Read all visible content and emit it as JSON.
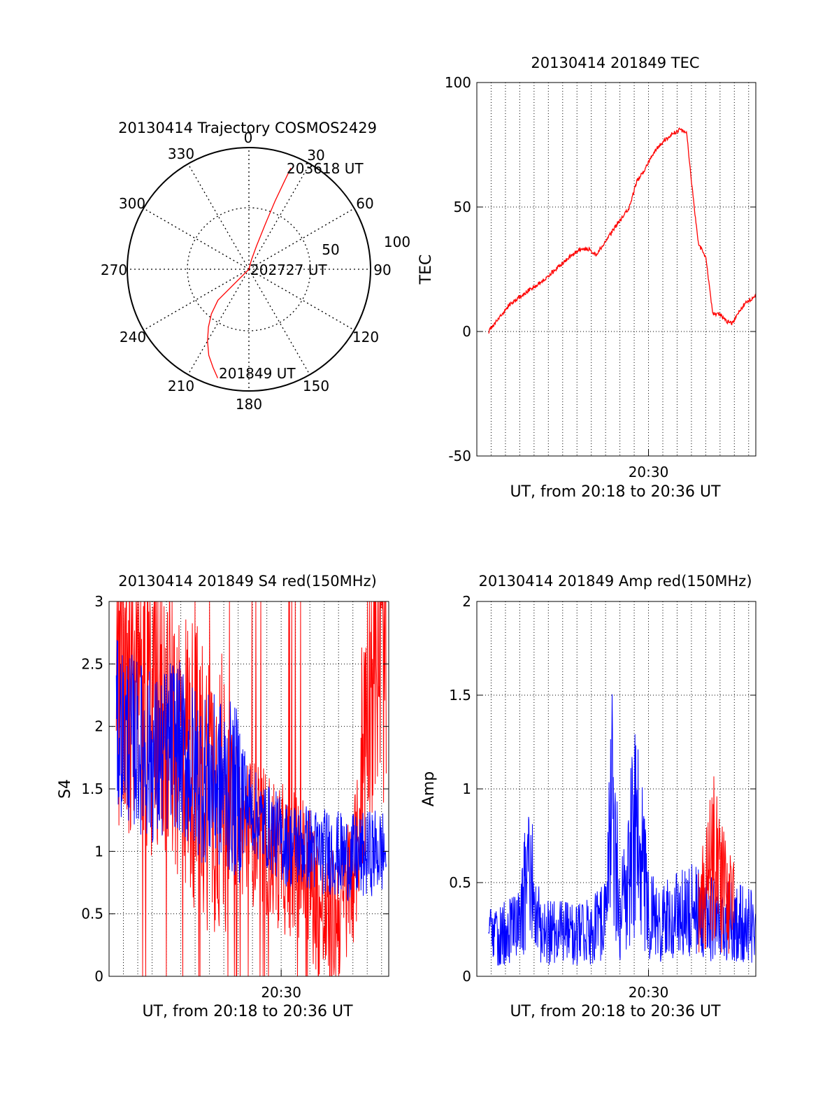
{
  "colors": {
    "red": "#ff0000",
    "blue": "#0000ff",
    "axis": "#000000",
    "grid": "#000000"
  },
  "chart_data": [
    {
      "type": "polar",
      "title": "20130414 Trajectory COSMOS2429",
      "angle_labels": [
        "0",
        "30",
        "60",
        "90",
        "120",
        "150",
        "180",
        "210",
        "240",
        "270",
        "300",
        "330"
      ],
      "ring_labels": [
        "50",
        "100"
      ],
      "rlim": [
        0,
        100
      ],
      "series": [
        {
          "color": "#ff0000",
          "points": [
            [
              196,
              93
            ],
            [
              200,
              86
            ],
            [
              205,
              78
            ],
            [
              210,
              68
            ],
            [
              215,
              58
            ],
            [
              220,
              48
            ],
            [
              225,
              36
            ],
            [
              0,
              0
            ],
            [
              15,
              8
            ],
            [
              18,
              20
            ],
            [
              20,
              40
            ],
            [
              21,
              60
            ],
            [
              22,
              78
            ],
            [
              22.5,
              90
            ]
          ]
        }
      ],
      "annotations": [
        {
          "text": "203618 UT",
          "at": [
            22.5,
            90
          ]
        },
        {
          "text": "202727 UT",
          "at": [
            0,
            0
          ]
        },
        {
          "text": "201849 UT",
          "at": [
            196,
            93
          ]
        }
      ]
    },
    {
      "type": "line",
      "title": "20130414 201849 TEC",
      "ylabel": "TEC",
      "xlabel": "UT, from 20:18 to 20:36 UT",
      "x_tick_labels": [
        {
          "t": "20:30",
          "label": "20:30"
        }
      ],
      "xlim": [
        "20:18:00",
        "20:37:30"
      ],
      "ylim": [
        -50,
        100
      ],
      "y_ticks": [
        -50,
        0,
        50,
        100
      ],
      "grid": true,
      "series": [
        {
          "color": "#ff0000",
          "x": [
            "20:18:49",
            "20:19:30",
            "20:20:20",
            "20:21:30",
            "20:22:30",
            "20:23:30",
            "20:24:30",
            "20:25:10",
            "20:25:50",
            "20:26:20",
            "20:27:00",
            "20:27:40",
            "20:28:20",
            "20:28:40",
            "20:29:10",
            "20:29:50",
            "20:30:30",
            "20:31:10",
            "20:31:50",
            "20:32:10",
            "20:32:40",
            "20:33:00",
            "20:33:30",
            "20:34:00",
            "20:34:30",
            "20:35:00",
            "20:35:30",
            "20:35:50",
            "20:36:20",
            "20:36:50",
            "20:37:30"
          ],
          "y": [
            0,
            5,
            11,
            16,
            20,
            25,
            30,
            33,
            33,
            31,
            36,
            42,
            47,
            50,
            60,
            66,
            73,
            77,
            80,
            81,
            80,
            60,
            35,
            30,
            7,
            7,
            4,
            3,
            8,
            12,
            14
          ]
        }
      ]
    },
    {
      "type": "line",
      "title": "20130414 201849 S4 red(150MHz)",
      "ylabel": "S4",
      "xlabel": "UT, from 20:18 to 20:36 UT",
      "x_tick_labels": [
        {
          "t": "20:30",
          "label": "20:30"
        }
      ],
      "xlim": [
        "20:18:00",
        "20:37:30"
      ],
      "ylim": [
        0,
        3
      ],
      "y_ticks": [
        0,
        0.5,
        1,
        1.5,
        2,
        2.5,
        3
      ],
      "grid": true,
      "series": [
        {
          "color": "#ff0000",
          "x": [
            "20:18:30",
            "20:19:30",
            "20:20:30",
            "20:21:30",
            "20:22:30",
            "20:23:30",
            "20:24:30",
            "20:25:30",
            "20:26:30",
            "20:27:30",
            "20:28:30",
            "20:29:30",
            "20:30:30",
            "20:31:20",
            "20:32:00",
            "20:32:40",
            "20:33:20",
            "20:34:00",
            "20:34:40",
            "20:35:20",
            "20:36:00",
            "20:36:40",
            "20:37:20"
          ],
          "y": [
            2.4,
            2.3,
            2.2,
            2.1,
            2.0,
            1.8,
            1.6,
            1.5,
            1.35,
            1.2,
            1.1,
            1.0,
            0.9,
            0.9,
            0.8,
            0.5,
            0.4,
            0.5,
            0.7,
            1.0,
            2.4,
            2.6,
            2.5
          ]
        },
        {
          "color": "#0000ff",
          "x": [
            "20:18:30",
            "20:19:30",
            "20:20:30",
            "20:21:30",
            "20:22:30",
            "20:23:30",
            "20:24:30",
            "20:25:30",
            "20:26:30",
            "20:27:30",
            "20:28:30",
            "20:29:30",
            "20:30:30",
            "20:31:30",
            "20:32:30",
            "20:33:30",
            "20:34:30",
            "20:35:30",
            "20:36:30",
            "20:37:20"
          ],
          "y": [
            2.0,
            1.9,
            1.8,
            1.7,
            1.9,
            1.7,
            1.6,
            1.55,
            1.5,
            1.4,
            1.25,
            1.15,
            1.05,
            1.05,
            1.0,
            1.0,
            0.95,
            0.95,
            1.0,
            1.0
          ]
        }
      ]
    },
    {
      "type": "line",
      "title": "20130414 201849 Amp red(150MHz)",
      "ylabel": "Amp",
      "xlabel": "UT, from 20:18 to 20:36 UT",
      "x_tick_labels": [
        {
          "t": "20:30",
          "label": "20:30"
        }
      ],
      "xlim": [
        "20:18:00",
        "20:37:30"
      ],
      "ylim": [
        0,
        2
      ],
      "y_ticks": [
        0,
        0.5,
        1,
        1.5,
        2
      ],
      "grid": true,
      "series": [
        {
          "color": "#0000ff",
          "x": [
            "20:18:49",
            "20:20:00",
            "20:21:00",
            "20:21:40",
            "20:22:10",
            "20:23:00",
            "20:24:00",
            "20:25:00",
            "20:26:00",
            "20:27:00",
            "20:27:30",
            "20:28:00",
            "20:29:00",
            "20:29:20",
            "20:30:00",
            "20:31:00",
            "20:32:00",
            "20:33:00",
            "20:34:00",
            "20:35:00",
            "20:36:00",
            "20:37:30"
          ],
          "y": [
            0.35,
            0.4,
            0.45,
            1.05,
            0.5,
            0.4,
            0.4,
            0.38,
            0.42,
            0.5,
            1.6,
            0.5,
            1.3,
            1.25,
            0.55,
            0.5,
            0.55,
            0.6,
            0.55,
            0.5,
            0.5,
            0.45
          ]
        },
        {
          "color": "#ff0000",
          "x": [
            "20:33:30",
            "20:34:00",
            "20:34:30",
            "20:35:00",
            "20:35:30",
            "20:36:00"
          ],
          "y": [
            0.55,
            0.8,
            1.1,
            0.85,
            0.7,
            0.6
          ]
        }
      ]
    }
  ]
}
